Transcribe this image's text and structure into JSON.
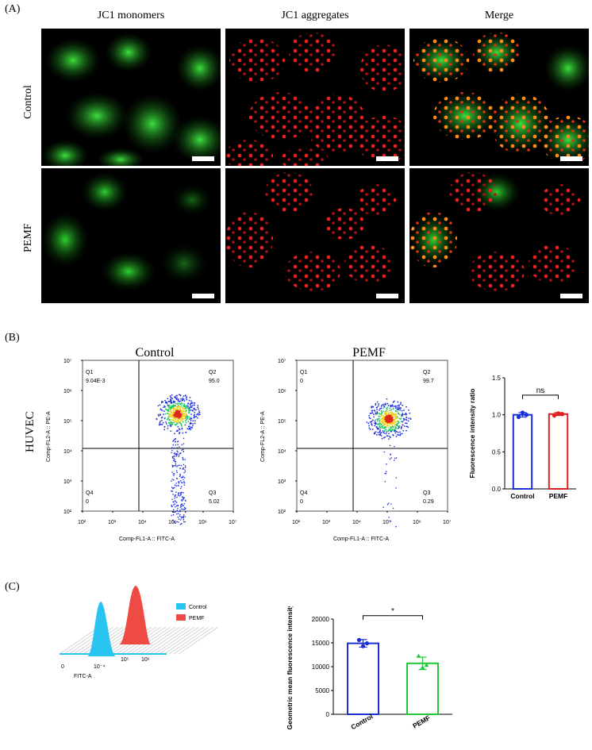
{
  "panelA": {
    "label": "(A)",
    "columns": [
      "JC1 monomers",
      "JC1 aggregates",
      "Merge"
    ],
    "rows": [
      "Control",
      "PEMF"
    ]
  },
  "panelB": {
    "label": "(B)",
    "row_label": "HUVEC",
    "flow": [
      {
        "title": "Control",
        "q1_label": "Q1",
        "q1": "9.04E-3",
        "q2_label": "Q2",
        "q2": "95.0",
        "q3_label": "Q3",
        "q3": "5.02",
        "q4_label": "Q4",
        "q4": "0",
        "xaxis": "Comp-FL1-A :: FITC-A",
        "yaxis": "Comp-FL2-A :: PE-A"
      },
      {
        "title": "PEMF",
        "q1_label": "Q1",
        "q1": "0",
        "q2_label": "Q2",
        "q2": "99.7",
        "q3_label": "Q3",
        "q3": "0.29",
        "q4_label": "Q4",
        "q4": "0",
        "xaxis": "Comp-FL1-A :: FITC-A",
        "yaxis": "Comp-FL2-A :: PE-A"
      }
    ],
    "decade_ticks": [
      "10²",
      "10³",
      "10⁴",
      "10⁵",
      "10⁶",
      "10⁷"
    ]
  },
  "panelC": {
    "label": "(C)",
    "legend": [
      "Control",
      "PEMF"
    ],
    "hist_xlabel": "FITC-A",
    "hist_ticks": [
      "0",
      "10⁻⁴",
      "10⁵",
      "10⁶"
    ]
  },
  "chart_data": [
    {
      "type": "bar",
      "categories": [
        "Control",
        "PEMF"
      ],
      "values": [
        1.0,
        1.01
      ],
      "points": [
        [
          0.97,
          1.03,
          1.0
        ],
        [
          0.99,
          1.02,
          1.01
        ]
      ],
      "error": [
        0.03,
        0.02
      ],
      "ylabel": "Fluorescence intensity ratio",
      "ylim": [
        0,
        1.5
      ],
      "yticks": [
        "0.0",
        "0.5",
        "1.0",
        "1.5"
      ],
      "significance": "ns",
      "colors": [
        "#1a2fd6",
        "#e02020"
      ]
    },
    {
      "type": "bar",
      "categories": [
        "Control",
        "PEMF"
      ],
      "values": [
        14900,
        10700
      ],
      "points": [
        [
          15600,
          14300,
          14900
        ],
        [
          12200,
          9800,
          10300
        ]
      ],
      "error": [
        800,
        1300
      ],
      "ylabel": "Geometric mean fluorescence intensity",
      "ylim": [
        0,
        20000
      ],
      "yticks": [
        "0",
        "5000",
        "10000",
        "15000",
        "20000"
      ],
      "significance": "*",
      "colors": [
        "#1a2fd6",
        "#22c63a"
      ]
    }
  ],
  "colors": {
    "green": "#2fd12f",
    "red": "#e21d1d",
    "cyan": "#29c4ef",
    "salmon": "#ee4b45"
  }
}
